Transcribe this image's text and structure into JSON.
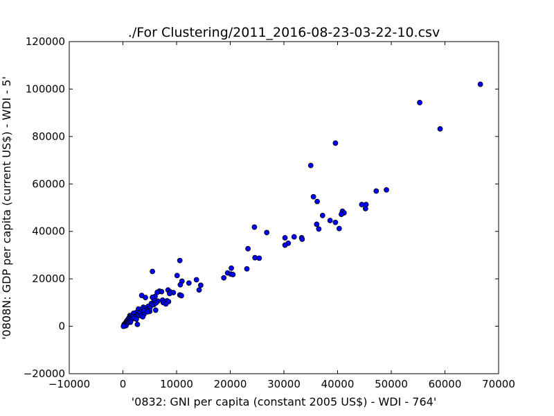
{
  "chart_data": {
    "type": "scatter",
    "title": "./For Clustering/2011_2016-08-23-03-22-10.csv",
    "xlabel": "'0832: GNI per capita  (constant 2005 US$) - WDI - 764'",
    "ylabel": "'0808N: GDP per capita  (current US$) - WDI - 5'",
    "xlim": [
      -10000,
      70000
    ],
    "ylim": [
      -20000,
      120000
    ],
    "xticks": [
      -10000,
      0,
      10000,
      20000,
      30000,
      40000,
      50000,
      60000,
      70000
    ],
    "yticks": [
      -20000,
      0,
      20000,
      40000,
      60000,
      80000,
      100000,
      120000
    ],
    "xtick_labels": [
      "−10000",
      "0",
      "10000",
      "20000",
      "30000",
      "40000",
      "50000",
      "60000",
      "70000"
    ],
    "ytick_labels": [
      "−20000",
      "0",
      "20000",
      "40000",
      "60000",
      "80000",
      "100000",
      "120000"
    ],
    "grid": false,
    "marker_color": "#0000ff",
    "marker_edge": "#000000",
    "points": [
      [
        66600,
        102000
      ],
      [
        55300,
        94300
      ],
      [
        59100,
        83200
      ],
      [
        39600,
        77200
      ],
      [
        35000,
        67800
      ],
      [
        49100,
        57500
      ],
      [
        47200,
        57000
      ],
      [
        35500,
        54600
      ],
      [
        36200,
        52600
      ],
      [
        44500,
        51300
      ],
      [
        45300,
        51300
      ],
      [
        45200,
        49600
      ],
      [
        40900,
        48500
      ],
      [
        41200,
        47800
      ],
      [
        40700,
        47200
      ],
      [
        37200,
        46700
      ],
      [
        38600,
        44600
      ],
      [
        39600,
        43800
      ],
      [
        36100,
        43000
      ],
      [
        36500,
        41000
      ],
      [
        40300,
        41200
      ],
      [
        24500,
        41800
      ],
      [
        26800,
        39500
      ],
      [
        31900,
        37700
      ],
      [
        30200,
        37300
      ],
      [
        33300,
        37300
      ],
      [
        33400,
        36700
      ],
      [
        30800,
        35000
      ],
      [
        30200,
        34200
      ],
      [
        23300,
        32700
      ],
      [
        24600,
        28900
      ],
      [
        25400,
        28700
      ],
      [
        10600,
        27700
      ],
      [
        23100,
        24200
      ],
      [
        20200,
        24500
      ],
      [
        5500,
        23100
      ],
      [
        19500,
        22500
      ],
      [
        20100,
        22000
      ],
      [
        20500,
        21800
      ],
      [
        10100,
        21400
      ],
      [
        18800,
        20400
      ],
      [
        13700,
        19600
      ],
      [
        11000,
        19000
      ],
      [
        12300,
        18200
      ],
      [
        14500,
        17300
      ],
      [
        10700,
        17500
      ],
      [
        14200,
        15300
      ],
      [
        8400,
        15300
      ],
      [
        8800,
        14500
      ],
      [
        6800,
        14800
      ],
      [
        7200,
        14600
      ],
      [
        6400,
        14300
      ],
      [
        9400,
        14200
      ],
      [
        8700,
        13800
      ],
      [
        10600,
        13200
      ],
      [
        10900,
        12900
      ],
      [
        3500,
        13000
      ],
      [
        6000,
        12600
      ],
      [
        5500,
        12200
      ],
      [
        4200,
        12100
      ],
      [
        7400,
        11000
      ],
      [
        5800,
        10800
      ],
      [
        8200,
        10700
      ],
      [
        6500,
        10600
      ],
      [
        8500,
        10400
      ],
      [
        7500,
        10000
      ],
      [
        6200,
        9900
      ],
      [
        5300,
        9600
      ],
      [
        8000,
        9400
      ],
      [
        5800,
        9200
      ],
      [
        5400,
        8900
      ],
      [
        4700,
        8400
      ],
      [
        3800,
        8000
      ],
      [
        4100,
        7700
      ],
      [
        5000,
        7600
      ],
      [
        2900,
        7300
      ],
      [
        6100,
        6800
      ],
      [
        4500,
        6900
      ],
      [
        4200,
        6700
      ],
      [
        3800,
        6500
      ],
      [
        5000,
        6300
      ],
      [
        4600,
        6100
      ],
      [
        3200,
        6000
      ],
      [
        2500,
        5800
      ],
      [
        3100,
        5500
      ],
      [
        2000,
        5500
      ],
      [
        3900,
        5000
      ],
      [
        2600,
        4700
      ],
      [
        3300,
        4500
      ],
      [
        1300,
        4500
      ],
      [
        1500,
        4300
      ],
      [
        2600,
        4200
      ],
      [
        1800,
        4000
      ],
      [
        3700,
        4000
      ],
      [
        2200,
        3700
      ],
      [
        1100,
        3400
      ],
      [
        1800,
        3200
      ],
      [
        1200,
        3100
      ],
      [
        2500,
        3000
      ],
      [
        900,
        2800
      ],
      [
        1500,
        2500
      ],
      [
        700,
        2200
      ],
      [
        1100,
        2100
      ],
      [
        600,
        1800
      ],
      [
        1400,
        1700
      ],
      [
        900,
        1500
      ],
      [
        500,
        1300
      ],
      [
        700,
        1100
      ],
      [
        300,
        1000
      ],
      [
        500,
        800
      ],
      [
        2700,
        800
      ],
      [
        200,
        600
      ],
      [
        400,
        400
      ],
      [
        600,
        300
      ],
      [
        200,
        200
      ],
      [
        300,
        100
      ],
      [
        100,
        0
      ]
    ]
  }
}
